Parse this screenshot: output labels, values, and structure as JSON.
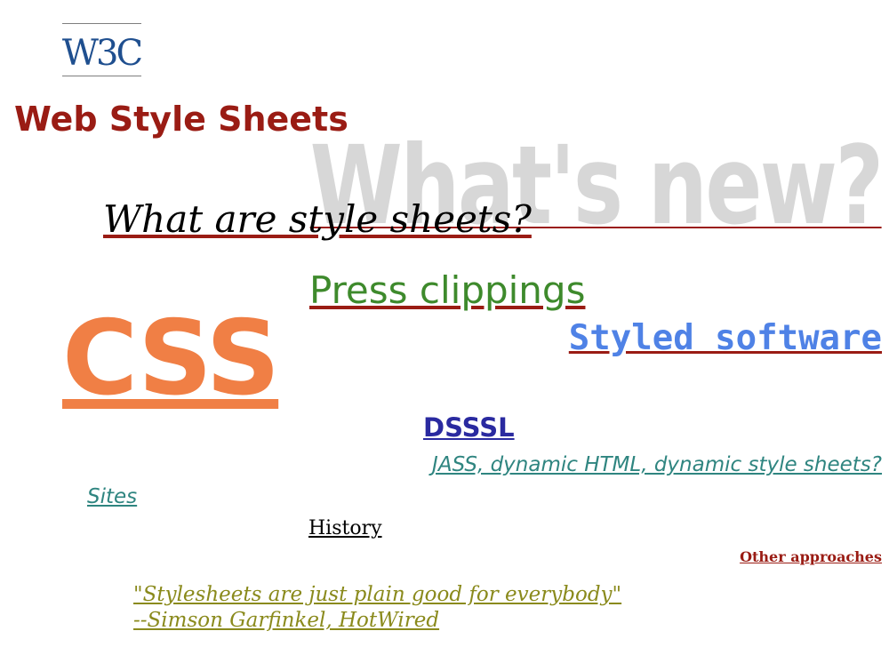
{
  "page": {
    "title": "Web Style Sheets",
    "logo_text": "W3C",
    "background_text": "What's new?"
  },
  "links": {
    "what_are": "What are style sheets?",
    "press": "Press clippings",
    "styled_software": "Styled software",
    "css": "CSS",
    "dsssl": "DSSSL",
    "jass": "JASS, dynamic HTML, dynamic style sheets?",
    "sites": "Sites",
    "history": "History",
    "other_approaches": "Other approaches"
  },
  "quote": {
    "text": "\"Stylesheets are just plain good for everybody\"",
    "attribution": "--Simson Garfinkel, HotWired"
  },
  "colors": {
    "title": "#9a1c14",
    "press": "#3e8a2c",
    "styled": "#4f82e6",
    "css": "#f07f45",
    "dsssl": "#2a2aa0",
    "teal": "#2f8580",
    "quote": "#8a8a1c",
    "logo_blue": "#1f4f8f"
  }
}
